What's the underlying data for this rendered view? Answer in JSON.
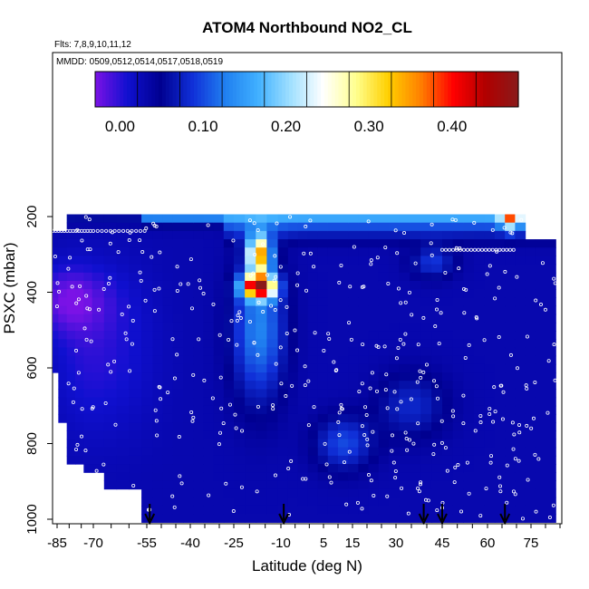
{
  "chart_data": {
    "type": "heatmap",
    "title": "ATOM4 Northbound NO2_CL",
    "subtitle_flights": "Flts: 7,8,9,10,11,12",
    "subtitle_dates": "MMDD: 0509,0512,0514,0517,0518,0519",
    "xlabel": "Latitude (deg N)",
    "ylabel": "PSXC (mbar)",
    "x_ticks_major": [
      -85,
      -70,
      -55,
      -40,
      -25,
      -10,
      5,
      15,
      30,
      45,
      60,
      75
    ],
    "y_ticks": [
      200,
      400,
      600,
      800,
      1000
    ],
    "xlim": [
      -88,
      88
    ],
    "ylim": [
      1030,
      0
    ],
    "y_reversed": true,
    "colorbar": {
      "ticks": [
        0.0,
        0.1,
        0.2,
        0.3,
        0.4
      ],
      "tick_labels": [
        "0.00",
        "0.10",
        "0.20",
        "0.30",
        "0.40"
      ],
      "range": [
        -0.03,
        0.48
      ],
      "colors": [
        "#7b12e6",
        "#1010d0",
        "#000090",
        "#1030d8",
        "#2080f0",
        "#40b0ff",
        "#a0e0ff",
        "#ffffff",
        "#ffff90",
        "#ffd000",
        "#ff8000",
        "#ff0000",
        "#b00000",
        "#8a1a1a"
      ]
    },
    "features": [
      {
        "lat_range": [
          -55,
          85
        ],
        "pres_range": [
          150,
          230
        ],
        "value": 0.15,
        "description": "elevated band near top"
      },
      {
        "lat_range": [
          -22,
          -8
        ],
        "pres_range": [
          360,
          420
        ],
        "value": 0.45,
        "description": "peak maximum"
      },
      {
        "lat_range": [
          -20,
          -14
        ],
        "pres_range": [
          260,
          340
        ],
        "value": 0.35
      },
      {
        "lat_range": [
          66,
          70
        ],
        "pres_range": [
          150,
          230
        ],
        "value": 0.32
      }
    ],
    "background_value": 0.03,
    "arrows_lat": [
      -54,
      -9,
      39,
      45,
      66
    ]
  }
}
